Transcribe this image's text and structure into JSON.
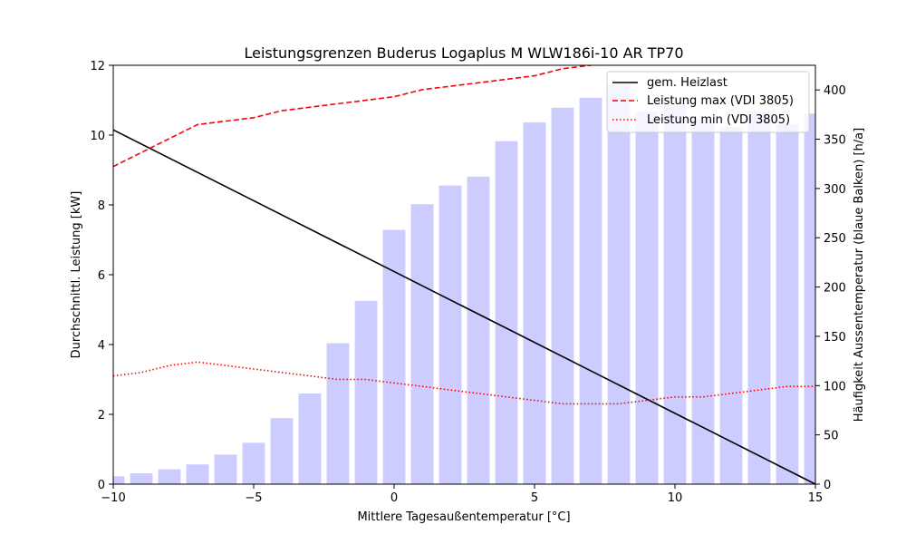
{
  "chart_data": {
    "type": "bar+line",
    "title": "Leistungsgrenzen Buderus Logaplus M WLW186i-10 AR TP70",
    "xlabel": "Mittlere Tagesaußentemperatur [°C]",
    "ylabel": "Durchschnittl. Leistung [kW]",
    "y2label": "Häufigkeit Aussentemperatur (blaue Balken) [h/a]",
    "xlim": [
      -10,
      15
    ],
    "ylim": [
      0,
      12
    ],
    "y2lim": [
      0,
      425
    ],
    "x_ticks": [
      -10,
      -5,
      0,
      5,
      10,
      15
    ],
    "y_ticks": [
      0,
      2,
      4,
      6,
      8,
      10,
      12
    ],
    "y2_ticks": [
      0,
      50,
      100,
      150,
      200,
      250,
      300,
      350,
      400
    ],
    "legend_position": "top-right",
    "bars": {
      "axis": "right",
      "color": "#ccccff",
      "x": [
        -10,
        -9,
        -8,
        -7,
        -6,
        -5,
        -4,
        -3,
        -2,
        -1,
        0,
        1,
        2,
        3,
        4,
        5,
        6,
        7,
        8,
        9,
        10,
        11,
        12,
        13,
        14,
        15
      ],
      "values": [
        8,
        11,
        15,
        20,
        30,
        42,
        67,
        92,
        143,
        186,
        258,
        284,
        303,
        312,
        348,
        367,
        382,
        392,
        406,
        378,
        384,
        370,
        362,
        378,
        365,
        376
      ]
    },
    "series": [
      {
        "name": "gem. Heizlast",
        "axis": "left",
        "color": "#000000",
        "style": "solid",
        "x": [
          -10,
          15
        ],
        "values": [
          10.15,
          0
        ]
      },
      {
        "name": "Leistung max (VDI 3805)",
        "axis": "left",
        "color": "#ff0000",
        "style": "dashed",
        "x": [
          -10,
          -7,
          -5,
          -4,
          -2,
          0,
          1,
          3,
          5,
          6,
          7,
          7.5
        ],
        "values": [
          9.1,
          10.3,
          10.5,
          10.7,
          10.9,
          11.1,
          11.3,
          11.5,
          11.7,
          11.9,
          12.0,
          12.1
        ]
      },
      {
        "name": "Leistung min (VDI 3805)",
        "axis": "left",
        "color": "#ff0000",
        "style": "dotted",
        "x": [
          -10,
          -9,
          -8,
          -7,
          -6,
          -5,
          -4,
          -3,
          -2,
          -1,
          0,
          1,
          2,
          3,
          4,
          5,
          6,
          7,
          8,
          9,
          10,
          11,
          12,
          13,
          14,
          15
        ],
        "values": [
          3.1,
          3.2,
          3.4,
          3.5,
          3.4,
          3.3,
          3.2,
          3.1,
          3.0,
          3.0,
          2.9,
          2.8,
          2.7,
          2.6,
          2.5,
          2.4,
          2.3,
          2.3,
          2.3,
          2.4,
          2.5,
          2.5,
          2.6,
          2.7,
          2.8,
          2.8
        ]
      }
    ]
  }
}
